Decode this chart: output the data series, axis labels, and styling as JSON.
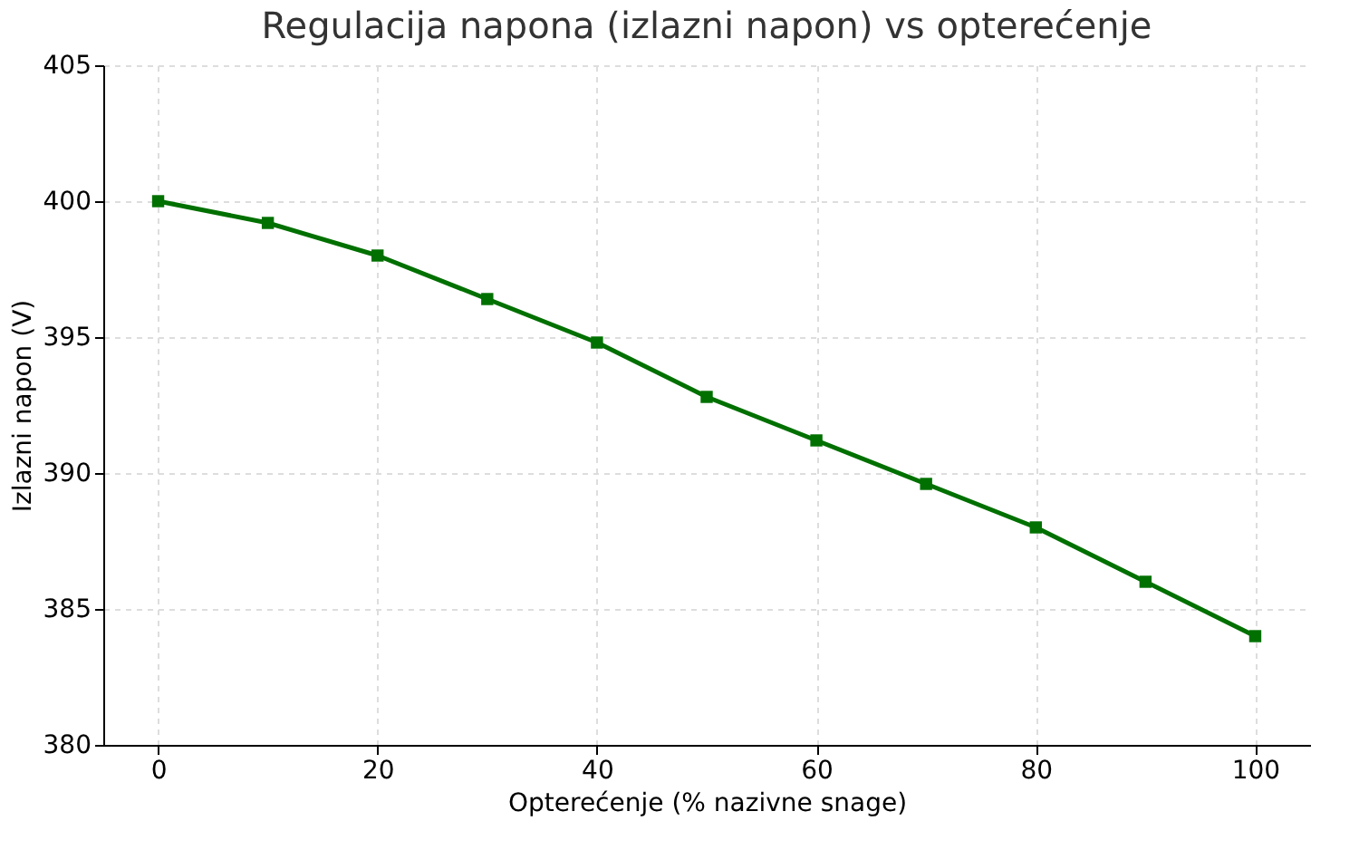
{
  "chart_data": {
    "type": "line",
    "title": "Regulacija napona (izlazni napon) vs opterećenje",
    "xlabel": "Opterećenje (% nazivne snage)",
    "ylabel": "Izlazni napon (V)",
    "x": [
      0,
      10,
      20,
      30,
      40,
      50,
      60,
      70,
      80,
      90,
      100
    ],
    "series": [
      {
        "color": "#007000",
        "values": [
          400,
          399.2,
          398,
          396.4,
          394.8,
          392.8,
          391.2,
          389.6,
          388,
          386,
          384
        ]
      }
    ],
    "xlim": [
      -5,
      105
    ],
    "ylim": [
      380,
      405
    ],
    "xticks": [
      0,
      20,
      40,
      60,
      80,
      100
    ],
    "yticks": [
      380,
      385,
      390,
      395,
      400,
      405
    ],
    "grid": true,
    "marker": "square",
    "line_style": "solid"
  }
}
